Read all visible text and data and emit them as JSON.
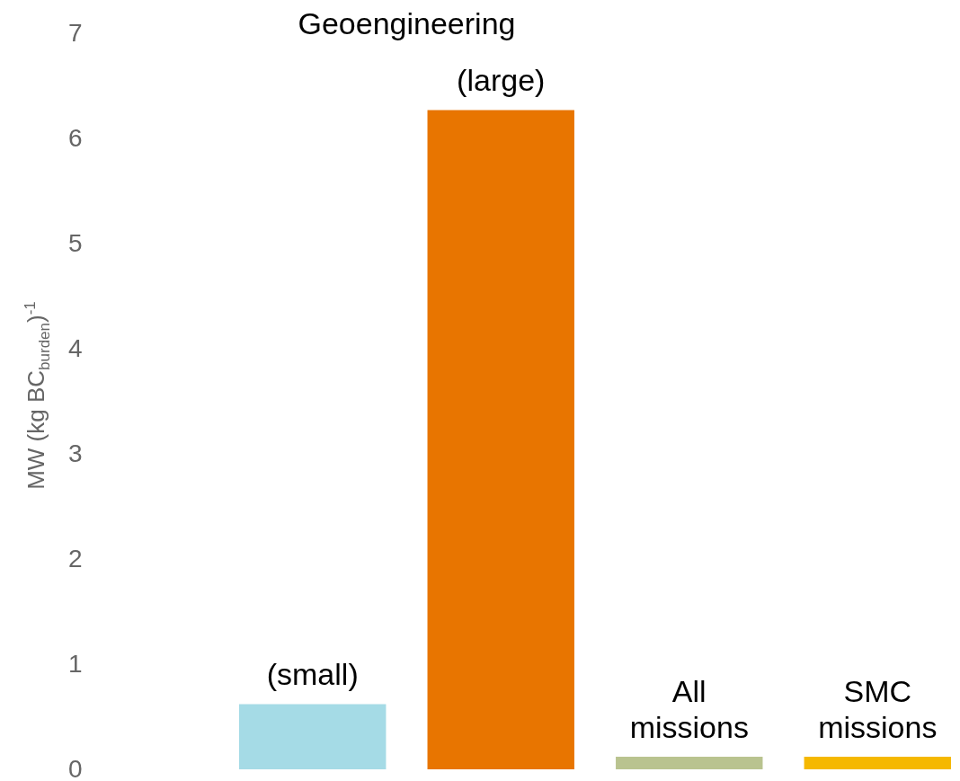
{
  "chart_data": {
    "type": "bar",
    "ylabel": "MW (kg BC$_{burden}$)$^{-1}$",
    "categories": [
      "(small)",
      "(large)",
      "All missions",
      "SMC missions"
    ],
    "values": [
      0.62,
      6.27,
      0.12,
      0.12
    ],
    "colors": [
      "#a5dbe6",
      "#e87500",
      "#b9c38f",
      "#f5b800"
    ],
    "ylim": [
      0,
      7
    ],
    "yticks": [
      0,
      1,
      2,
      3,
      4,
      5,
      6,
      7
    ],
    "annotations": [
      "Geoengineering"
    ],
    "grid": false
  }
}
